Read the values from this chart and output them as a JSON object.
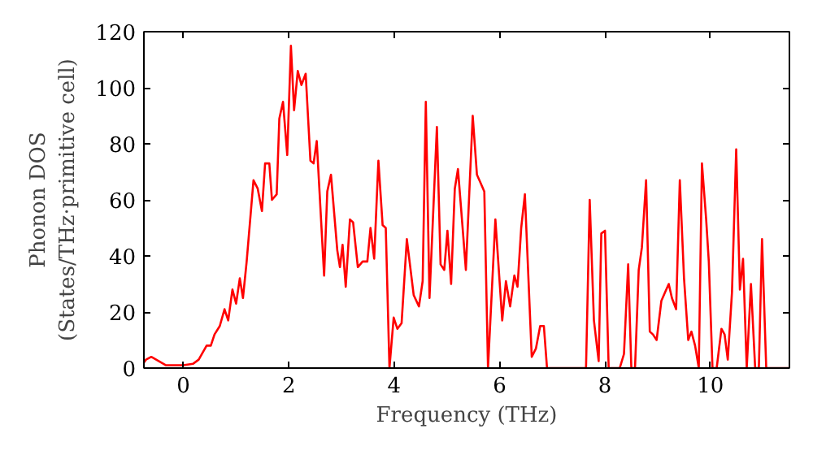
{
  "chart_data": {
    "type": "line",
    "xlabel": "Frequency (THz)",
    "ylabel": "Phonon DOS\n(States/THz·primitive cell)",
    "xlim": [
      -0.75,
      11.5
    ],
    "ylim": [
      0,
      120
    ],
    "xticks": [
      0,
      2,
      4,
      6,
      8,
      10
    ],
    "yticks": [
      0,
      20,
      40,
      60,
      80,
      100,
      120
    ],
    "grid": false,
    "marker": "none",
    "line_style": "solid",
    "series": [
      {
        "color": "#ff0000",
        "x": [
          -0.75,
          -0.71,
          -0.61,
          -0.33,
          0,
          0.18,
          0.29,
          0.44,
          0.52,
          0.59,
          0.69,
          0.78,
          0.85,
          0.93,
          1.0,
          1.07,
          1.13,
          1.2,
          1.33,
          1.41,
          1.49,
          1.55,
          1.63,
          1.68,
          1.77,
          1.82,
          1.89,
          1.97,
          2.04,
          2.1,
          2.17,
          2.24,
          2.32,
          2.41,
          2.47,
          2.53,
          2.67,
          2.73,
          2.8,
          2.92,
          2.97,
          3.02,
          3.08,
          3.16,
          3.22,
          3.31,
          3.4,
          3.49,
          3.55,
          3.62,
          3.7,
          3.78,
          3.84,
          3.91,
          3.99,
          4.06,
          4.14,
          4.24,
          4.37,
          4.47,
          4.54,
          4.6,
          4.67,
          4.81,
          4.88,
          4.95,
          5.01,
          5.08,
          5.15,
          5.21,
          5.29,
          5.36,
          5.49,
          5.57,
          5.64,
          5.71,
          5.78,
          5.92,
          6.05,
          6.12,
          6.2,
          6.28,
          6.34,
          6.41,
          6.48,
          6.61,
          6.69,
          6.77,
          6.84,
          6.9,
          7.64,
          7.71,
          7.79,
          7.88,
          7.93,
          8.0,
          8.07,
          8.28,
          8.36,
          8.44,
          8.5,
          8.57,
          8.64,
          8.7,
          8.78,
          8.85,
          8.91,
          8.98,
          9.07,
          9.14,
          9.21,
          9.27,
          9.35,
          9.42,
          9.5,
          9.58,
          9.64,
          9.71,
          9.78,
          9.84,
          9.92,
          9.97,
          10.04,
          10.12,
          10.21,
          10.27,
          10.33,
          10.41,
          10.49,
          10.56,
          10.62,
          10.69,
          10.77,
          10.85,
          10.92,
          10.98,
          11.06,
          11.5
        ],
        "values": [
          2,
          3,
          4,
          1,
          1,
          1.5,
          3,
          8,
          8,
          12,
          15,
          21,
          17,
          28,
          23,
          32,
          25,
          38,
          67,
          64,
          56,
          73,
          73,
          60,
          62,
          89,
          95,
          76,
          115,
          92,
          106,
          101,
          105,
          74,
          73,
          81,
          33,
          63,
          69,
          42,
          36,
          44,
          29,
          53,
          52,
          36,
          38,
          38,
          50,
          39,
          74,
          51,
          50,
          0,
          18,
          14,
          16,
          46,
          26,
          22,
          31,
          95,
          25,
          86,
          37,
          35,
          49,
          30,
          64,
          71,
          52,
          35,
          90,
          69,
          66,
          63,
          0,
          53,
          17,
          31,
          22,
          33,
          29,
          50,
          62,
          4,
          7,
          15,
          15,
          0,
          0,
          60,
          17,
          2.5,
          48,
          49,
          0,
          0,
          5,
          37,
          0,
          0,
          35,
          43,
          67,
          13,
          12,
          10,
          24,
          27,
          30,
          25,
          21,
          67,
          32,
          10,
          13,
          8,
          0,
          73,
          53,
          38,
          0,
          0,
          14,
          12,
          3,
          27,
          78,
          28,
          39,
          0,
          30,
          0,
          0,
          46,
          0,
          0
        ]
      }
    ]
  }
}
